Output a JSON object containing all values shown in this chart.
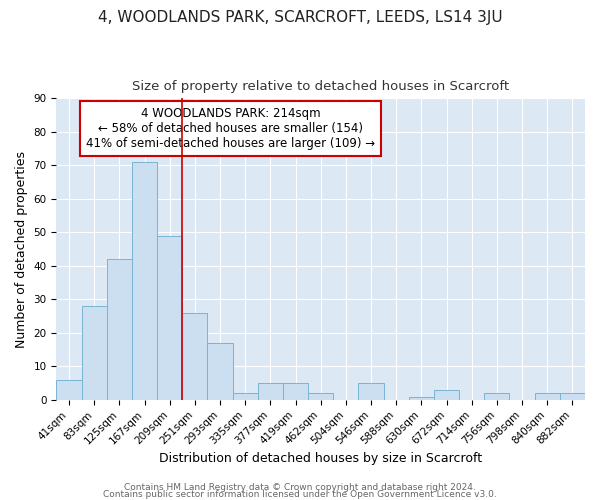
{
  "title": "4, WOODLANDS PARK, SCARCROFT, LEEDS, LS14 3JU",
  "subtitle": "Size of property relative to detached houses in Scarcroft",
  "xlabel": "Distribution of detached houses by size in Scarcroft",
  "ylabel": "Number of detached properties",
  "bar_labels": [
    "41sqm",
    "83sqm",
    "125sqm",
    "167sqm",
    "209sqm",
    "251sqm",
    "293sqm",
    "335sqm",
    "377sqm",
    "419sqm",
    "462sqm",
    "504sqm",
    "546sqm",
    "588sqm",
    "630sqm",
    "672sqm",
    "714sqm",
    "756sqm",
    "798sqm",
    "840sqm",
    "882sqm"
  ],
  "bar_values": [
    6,
    28,
    42,
    71,
    49,
    26,
    17,
    2,
    5,
    5,
    2,
    0,
    5,
    0,
    1,
    3,
    0,
    2,
    0,
    2,
    2
  ],
  "bar_color": "#ccdff0",
  "bar_edge_color": "#7ab3d4",
  "annotation_text": "4 WOODLANDS PARK: 214sqm\n← 58% of detached houses are smaller (154)\n41% of semi-detached houses are larger (109) →",
  "annotation_box_color": "#ffffff",
  "annotation_box_edge": "#cc0000",
  "vline_x": 4.5,
  "vline_color": "#cc0000",
  "ylim": [
    0,
    90
  ],
  "yticks": [
    0,
    10,
    20,
    30,
    40,
    50,
    60,
    70,
    80,
    90
  ],
  "footer1": "Contains HM Land Registry data © Crown copyright and database right 2024.",
  "footer2": "Contains public sector information licensed under the Open Government Licence v3.0.",
  "fig_bg_color": "#ffffff",
  "plot_bg_color": "#dce9f5",
  "grid_color": "#ffffff",
  "title_fontsize": 11,
  "subtitle_fontsize": 9.5,
  "axis_label_fontsize": 9,
  "tick_fontsize": 7.5,
  "annotation_fontsize": 8.5,
  "footer_fontsize": 6.5
}
